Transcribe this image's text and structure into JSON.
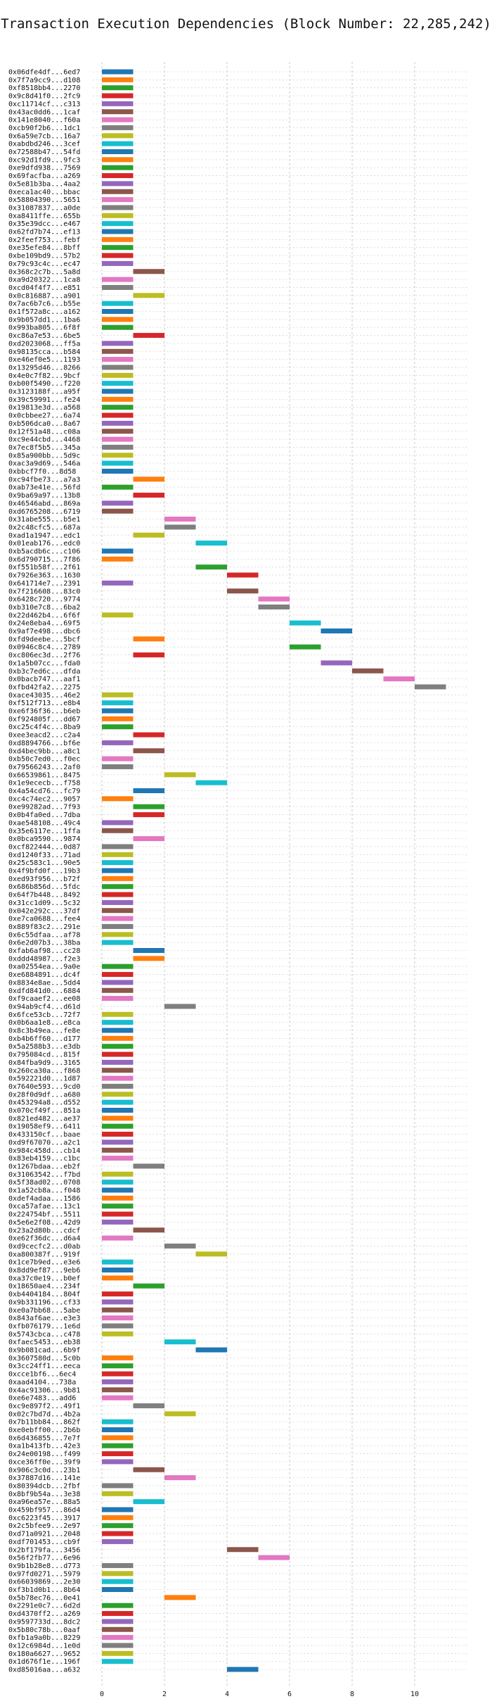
{
  "chart_data": {
    "type": "bar",
    "orientation": "horizontal",
    "title": "Transaction Execution Dependencies (Block Number: 22,285,242)",
    "xlabel": "",
    "ylabel": "",
    "xlim": [
      -0.5,
      11.7
    ],
    "xticks": [
      0,
      2,
      4,
      6,
      8,
      10
    ],
    "grid": true,
    "palette": [
      "#1f77b4",
      "#ff7f0e",
      "#2ca02c",
      "#d62728",
      "#9467bd",
      "#8c564b",
      "#e377c2",
      "#7f7f7f",
      "#bcbd22",
      "#17becf"
    ],
    "transactions": [
      {
        "hash": "0x06dfe4df...6ed7",
        "start": 0,
        "end": 1
      },
      {
        "hash": "0x7f7a9cc9...d108",
        "start": 0,
        "end": 1
      },
      {
        "hash": "0xf8518bb4...2270",
        "start": 0,
        "end": 1
      },
      {
        "hash": "0x9c8d41f0...2fc9",
        "start": 0,
        "end": 1
      },
      {
        "hash": "0xc11714cf...c313",
        "start": 0,
        "end": 1
      },
      {
        "hash": "0x43ac0dd6...1caf",
        "start": 0,
        "end": 1
      },
      {
        "hash": "0x141e8040...f60a",
        "start": 0,
        "end": 1
      },
      {
        "hash": "0xcb90f2b6...1dc1",
        "start": 0,
        "end": 1
      },
      {
        "hash": "0x6a59e7cb...16a7",
        "start": 0,
        "end": 1
      },
      {
        "hash": "0xabdbd246...3cef",
        "start": 0,
        "end": 1
      },
      {
        "hash": "0x72588b47...54fd",
        "start": 0,
        "end": 1
      },
      {
        "hash": "0xc92d1fd9...9fc3",
        "start": 0,
        "end": 1
      },
      {
        "hash": "0xe9dfd938...7569",
        "start": 0,
        "end": 1
      },
      {
        "hash": "0x69facfba...a269",
        "start": 0,
        "end": 1
      },
      {
        "hash": "0x5e81b3ba...4aa2",
        "start": 0,
        "end": 1
      },
      {
        "hash": "0xeca1ac40...bbac",
        "start": 0,
        "end": 1
      },
      {
        "hash": "0x58804390...5651",
        "start": 0,
        "end": 1
      },
      {
        "hash": "0x31087837...a0de",
        "start": 0,
        "end": 1
      },
      {
        "hash": "0xa8411ffe...655b",
        "start": 0,
        "end": 1
      },
      {
        "hash": "0x35e39dcc...e467",
        "start": 0,
        "end": 1
      },
      {
        "hash": "0x62fd7b74...ef13",
        "start": 0,
        "end": 1
      },
      {
        "hash": "0x2feef753...febf",
        "start": 0,
        "end": 1
      },
      {
        "hash": "0xe35efe84...8bff",
        "start": 0,
        "end": 1
      },
      {
        "hash": "0xbe109bd9...57b2",
        "start": 0,
        "end": 1
      },
      {
        "hash": "0x79c93c4c...ec47",
        "start": 0,
        "end": 1
      },
      {
        "hash": "0x368c2c7b...5a8d",
        "start": 1,
        "end": 2
      },
      {
        "hash": "0xa9d20322...1ca8",
        "start": 0,
        "end": 1
      },
      {
        "hash": "0xcd04f4f7...e851",
        "start": 0,
        "end": 1
      },
      {
        "hash": "0x0c816887...a901",
        "start": 1,
        "end": 2
      },
      {
        "hash": "0x7ac6b7c6...b55e",
        "start": 0,
        "end": 1
      },
      {
        "hash": "0x1f572a8c...a162",
        "start": 0,
        "end": 1
      },
      {
        "hash": "0x9b057dd1...1ba6",
        "start": 0,
        "end": 1
      },
      {
        "hash": "0x993ba805...6f8f",
        "start": 0,
        "end": 1
      },
      {
        "hash": "0xc86a7e53...6be5",
        "start": 1,
        "end": 2
      },
      {
        "hash": "0xd2023068...ff5a",
        "start": 0,
        "end": 1
      },
      {
        "hash": "0x98135cca...b584",
        "start": 0,
        "end": 1
      },
      {
        "hash": "0xe46ef0e5...1193",
        "start": 0,
        "end": 1
      },
      {
        "hash": "0x13295d46...8266",
        "start": 0,
        "end": 1
      },
      {
        "hash": "0x4e0c7f82...9bcf",
        "start": 0,
        "end": 1
      },
      {
        "hash": "0xb00f5490...f220",
        "start": 0,
        "end": 1
      },
      {
        "hash": "0x3123188f...a95f",
        "start": 0,
        "end": 1
      },
      {
        "hash": "0x39c59991...fe24",
        "start": 0,
        "end": 1
      },
      {
        "hash": "0x19813e3d...a568",
        "start": 0,
        "end": 1
      },
      {
        "hash": "0x0cbbee27...6a74",
        "start": 0,
        "end": 1
      },
      {
        "hash": "0xb506dca0...8a67",
        "start": 0,
        "end": 1
      },
      {
        "hash": "0x12f51a48...c08a",
        "start": 0,
        "end": 1
      },
      {
        "hash": "0xc9e44cbd...4468",
        "start": 0,
        "end": 1
      },
      {
        "hash": "0x7ec8f5b5...345a",
        "start": 0,
        "end": 1
      },
      {
        "hash": "0x85a900bb...5d9c",
        "start": 0,
        "end": 1
      },
      {
        "hash": "0xac3a9d69...546a",
        "start": 0,
        "end": 1
      },
      {
        "hash": "0xbbcf7f0...8d58",
        "start": 0,
        "end": 1
      },
      {
        "hash": "0xc94fbe73...a7a3",
        "start": 1,
        "end": 2
      },
      {
        "hash": "0xab73e41e...56fd",
        "start": 0,
        "end": 1
      },
      {
        "hash": "0x9ba69a97...13b8",
        "start": 1,
        "end": 2
      },
      {
        "hash": "0x46546abd...869a",
        "start": 0,
        "end": 1
      },
      {
        "hash": "0xd6765208...6719",
        "start": 0,
        "end": 1
      },
      {
        "hash": "0x31abe555...b5e1",
        "start": 2,
        "end": 3
      },
      {
        "hash": "0x2c48cfc5...687a",
        "start": 2,
        "end": 3
      },
      {
        "hash": "0xad1a1947...edc1",
        "start": 1,
        "end": 2
      },
      {
        "hash": "0x01eab176...edc0",
        "start": 3,
        "end": 4
      },
      {
        "hash": "0xb5acdb6c...c106",
        "start": 0,
        "end": 1
      },
      {
        "hash": "0x6d790715...7f86",
        "start": 0,
        "end": 1
      },
      {
        "hash": "0xf551b58f...2f61",
        "start": 3,
        "end": 4
      },
      {
        "hash": "0x7926e363...1630",
        "start": 4,
        "end": 5
      },
      {
        "hash": "0x641714e7...2391",
        "start": 0,
        "end": 1
      },
      {
        "hash": "0x7f216608...83c0",
        "start": 4,
        "end": 5
      },
      {
        "hash": "0x6428c720...9774",
        "start": 5,
        "end": 6
      },
      {
        "hash": "0xb310e7c8...6ba2",
        "start": 5,
        "end": 6
      },
      {
        "hash": "0x22d462b4...6f6f",
        "start": 0,
        "end": 1
      },
      {
        "hash": "0x24e8eba4...69f5",
        "start": 6,
        "end": 7
      },
      {
        "hash": "0x9af7e498...dbc6",
        "start": 7,
        "end": 8
      },
      {
        "hash": "0xfd9deebe...5bcf",
        "start": 1,
        "end": 2
      },
      {
        "hash": "0x0946c8c4...2789",
        "start": 6,
        "end": 7
      },
      {
        "hash": "0xc806ec3d...2f76",
        "start": 1,
        "end": 2
      },
      {
        "hash": "0x1a5b07cc...fda0",
        "start": 7,
        "end": 8
      },
      {
        "hash": "0xb3c7ed6c...dfda",
        "start": 8,
        "end": 9
      },
      {
        "hash": "0x0bacb747...aaf1",
        "start": 9,
        "end": 10
      },
      {
        "hash": "0xfbd42fa2...2275",
        "start": 10,
        "end": 11
      },
      {
        "hash": "0xace43035...46e2",
        "start": 0,
        "end": 1
      },
      {
        "hash": "0xf512f713...e8b4",
        "start": 0,
        "end": 1
      },
      {
        "hash": "0xe6f36f36...b6eb",
        "start": 0,
        "end": 1
      },
      {
        "hash": "0xf924805f...dd67",
        "start": 0,
        "end": 1
      },
      {
        "hash": "0xc25c4f4c...8ba9",
        "start": 0,
        "end": 1
      },
      {
        "hash": "0xee3eacd2...c2a4",
        "start": 1,
        "end": 2
      },
      {
        "hash": "0xd8894766...bf6e",
        "start": 0,
        "end": 1
      },
      {
        "hash": "0xd4bec9bb...a8c1",
        "start": 1,
        "end": 2
      },
      {
        "hash": "0xb50c7ed0...f0ec",
        "start": 0,
        "end": 1
      },
      {
        "hash": "0x79566243...2af0",
        "start": 0,
        "end": 1
      },
      {
        "hash": "0x66539861...8475",
        "start": 2,
        "end": 3
      },
      {
        "hash": "0x1e9ececb...f758",
        "start": 3,
        "end": 4
      },
      {
        "hash": "0x4a54cd76...fc79",
        "start": 1,
        "end": 2
      },
      {
        "hash": "0xc4c74ec2...9057",
        "start": 0,
        "end": 1
      },
      {
        "hash": "0xe99282ad...7f93",
        "start": 1,
        "end": 2
      },
      {
        "hash": "0x0b4fa0ed...7dba",
        "start": 1,
        "end": 2
      },
      {
        "hash": "0xae548108...49c4",
        "start": 0,
        "end": 1
      },
      {
        "hash": "0x35e6117e...1ffa",
        "start": 0,
        "end": 1
      },
      {
        "hash": "0x0bca9590...9874",
        "start": 1,
        "end": 2
      },
      {
        "hash": "0xcf822444...0d87",
        "start": 0,
        "end": 1
      },
      {
        "hash": "0xd1240f33...71ad",
        "start": 0,
        "end": 1
      },
      {
        "hash": "0x25c583c1...90e5",
        "start": 0,
        "end": 1
      },
      {
        "hash": "0x4f9bfd0f...19b3",
        "start": 0,
        "end": 1
      },
      {
        "hash": "0xed93f956...b72f",
        "start": 0,
        "end": 1
      },
      {
        "hash": "0x686b856d...5fdc",
        "start": 0,
        "end": 1
      },
      {
        "hash": "0x64f7b448...8492",
        "start": 0,
        "end": 1
      },
      {
        "hash": "0x31cc1d09...5c32",
        "start": 0,
        "end": 1
      },
      {
        "hash": "0x042e292c...37df",
        "start": 0,
        "end": 1
      },
      {
        "hash": "0xe7ca0688...fee4",
        "start": 0,
        "end": 1
      },
      {
        "hash": "0x889f83c2...291e",
        "start": 0,
        "end": 1
      },
      {
        "hash": "0x6c55dfaa...af78",
        "start": 0,
        "end": 1
      },
      {
        "hash": "0x6e2d07b3...38ba",
        "start": 0,
        "end": 1
      },
      {
        "hash": "0xfab6af98...cc28",
        "start": 1,
        "end": 2
      },
      {
        "hash": "0xddd48987...f2e3",
        "start": 1,
        "end": 2
      },
      {
        "hash": "0xa02554ea...9a0e",
        "start": 0,
        "end": 1
      },
      {
        "hash": "0xe6884891...dc4f",
        "start": 0,
        "end": 1
      },
      {
        "hash": "0x8834e8ae...5dd4",
        "start": 0,
        "end": 1
      },
      {
        "hash": "0xdfd841d0...6884",
        "start": 0,
        "end": 1
      },
      {
        "hash": "0xf9caaef2...ee08",
        "start": 0,
        "end": 1
      },
      {
        "hash": "0x94ab9cf4...d61d",
        "start": 2,
        "end": 3
      },
      {
        "hash": "0x6fce53cb...72f7",
        "start": 0,
        "end": 1
      },
      {
        "hash": "0x0b6aa1e8...e8ca",
        "start": 0,
        "end": 1
      },
      {
        "hash": "0x8c3b49ea...fe8e",
        "start": 0,
        "end": 1
      },
      {
        "hash": "0xb4b6ff60...d177",
        "start": 0,
        "end": 1
      },
      {
        "hash": "0x5a2588b3...e3db",
        "start": 0,
        "end": 1
      },
      {
        "hash": "0x795084cd...815f",
        "start": 0,
        "end": 1
      },
      {
        "hash": "0x84fba9d9...3165",
        "start": 0,
        "end": 1
      },
      {
        "hash": "0x260ca30a...f868",
        "start": 0,
        "end": 1
      },
      {
        "hash": "0x592221d0...1d87",
        "start": 0,
        "end": 1
      },
      {
        "hash": "0x7640e593...9cd0",
        "start": 0,
        "end": 1
      },
      {
        "hash": "0x28f0d9df...a680",
        "start": 0,
        "end": 1
      },
      {
        "hash": "0x453294a8...d552",
        "start": 0,
        "end": 1
      },
      {
        "hash": "0x070cf49f...851a",
        "start": 0,
        "end": 1
      },
      {
        "hash": "0x821ed482...ae37",
        "start": 0,
        "end": 1
      },
      {
        "hash": "0x19058ef9...6411",
        "start": 0,
        "end": 1
      },
      {
        "hash": "0x433150cf...baae",
        "start": 0,
        "end": 1
      },
      {
        "hash": "0xd9f67070...a2c1",
        "start": 0,
        "end": 1
      },
      {
        "hash": "0x984c458d...cb14",
        "start": 0,
        "end": 1
      },
      {
        "hash": "0x83eb4159...c1bc",
        "start": 0,
        "end": 1
      },
      {
        "hash": "0x1267bdaa...eb2f",
        "start": 1,
        "end": 2
      },
      {
        "hash": "0x31063542...f7bd",
        "start": 0,
        "end": 1
      },
      {
        "hash": "0x5f38ad02...0708",
        "start": 0,
        "end": 1
      },
      {
        "hash": "0x1a52cb8a...f048",
        "start": 0,
        "end": 1
      },
      {
        "hash": "0xdef4adaa...1586",
        "start": 0,
        "end": 1
      },
      {
        "hash": "0xca57afae...13c1",
        "start": 0,
        "end": 1
      },
      {
        "hash": "0x224754bf...5511",
        "start": 0,
        "end": 1
      },
      {
        "hash": "0x5e6e2f08...42d9",
        "start": 0,
        "end": 1
      },
      {
        "hash": "0x23a2d80b...cdcf",
        "start": 1,
        "end": 2
      },
      {
        "hash": "0xe62f36dc...d6a4",
        "start": 0,
        "end": 1
      },
      {
        "hash": "0xd9cecfc2...d0ab",
        "start": 2,
        "end": 3
      },
      {
        "hash": "0xa800387f...919f",
        "start": 3,
        "end": 4
      },
      {
        "hash": "0x1ce7b9ed...e3e6",
        "start": 0,
        "end": 1
      },
      {
        "hash": "0x8dd9ef87...9eb6",
        "start": 0,
        "end": 1
      },
      {
        "hash": "0xa37c0e19...b0ef",
        "start": 0,
        "end": 1
      },
      {
        "hash": "0x18650ae4...234f",
        "start": 1,
        "end": 2
      },
      {
        "hash": "0xb4404184...804f",
        "start": 0,
        "end": 1
      },
      {
        "hash": "0x9b331196...cf33",
        "start": 0,
        "end": 1
      },
      {
        "hash": "0xe0a7bb68...5abe",
        "start": 0,
        "end": 1
      },
      {
        "hash": "0x843af6ae...e3e3",
        "start": 0,
        "end": 1
      },
      {
        "hash": "0xfb076179...1e6d",
        "start": 0,
        "end": 1
      },
      {
        "hash": "0x5743cbca...c478",
        "start": 0,
        "end": 1
      },
      {
        "hash": "0xfaec5453...eb38",
        "start": 2,
        "end": 3
      },
      {
        "hash": "0x9b081cad...6b9f",
        "start": 3,
        "end": 4
      },
      {
        "hash": "0x3607580d...5c0b",
        "start": 0,
        "end": 1
      },
      {
        "hash": "0x3cc24ff1...eeca",
        "start": 0,
        "end": 1
      },
      {
        "hash": "0xcce1bf6...6ec4",
        "start": 0,
        "end": 1
      },
      {
        "hash": "0xaad4104...738a",
        "start": 0,
        "end": 1
      },
      {
        "hash": "0x4ac91306...9b81",
        "start": 0,
        "end": 1
      },
      {
        "hash": "0xe6e7483...add6",
        "start": 0,
        "end": 1
      },
      {
        "hash": "0xc9e897f2...49f1",
        "start": 1,
        "end": 2
      },
      {
        "hash": "0x02c7bd7d...4b2a",
        "start": 2,
        "end": 3
      },
      {
        "hash": "0x7b11bb84...862f",
        "start": 0,
        "end": 1
      },
      {
        "hash": "0xe0ebff00...2b6b",
        "start": 0,
        "end": 1
      },
      {
        "hash": "0x6d436855...7e7f",
        "start": 0,
        "end": 1
      },
      {
        "hash": "0xa1b413fb...42e3",
        "start": 0,
        "end": 1
      },
      {
        "hash": "0x24e00198...f499",
        "start": 0,
        "end": 1
      },
      {
        "hash": "0xce36ff0e...39f9",
        "start": 0,
        "end": 1
      },
      {
        "hash": "0x906c3c0d...23b1",
        "start": 1,
        "end": 2
      },
      {
        "hash": "0x37887d16...141e",
        "start": 2,
        "end": 3
      },
      {
        "hash": "0x80394dcb...2fbf",
        "start": 0,
        "end": 1
      },
      {
        "hash": "0x8bf9b54a...3e38",
        "start": 0,
        "end": 1
      },
      {
        "hash": "0xa96ea57e...88a5",
        "start": 1,
        "end": 2
      },
      {
        "hash": "0x459bf957...86d4",
        "start": 0,
        "end": 1
      },
      {
        "hash": "0xc6223f45...3917",
        "start": 0,
        "end": 1
      },
      {
        "hash": "0x2c5bfee9...2e97",
        "start": 0,
        "end": 1
      },
      {
        "hash": "0xd71a0921...2048",
        "start": 0,
        "end": 1
      },
      {
        "hash": "0xdf701453...cb9f",
        "start": 0,
        "end": 1
      },
      {
        "hash": "0x2bf179fa...3456",
        "start": 4,
        "end": 5
      },
      {
        "hash": "0x56f2fb77...6e96",
        "start": 5,
        "end": 6
      },
      {
        "hash": "0x9b1b28e8...d773",
        "start": 0,
        "end": 1
      },
      {
        "hash": "0x97fd0271...5979",
        "start": 0,
        "end": 1
      },
      {
        "hash": "0x66039869...2e30",
        "start": 0,
        "end": 1
      },
      {
        "hash": "0xf3b1d0b1...8b64",
        "start": 0,
        "end": 1
      },
      {
        "hash": "0x5b78ec76...0e41",
        "start": 2,
        "end": 3
      },
      {
        "hash": "0x2291e0c7...6d2d",
        "start": 0,
        "end": 1
      },
      {
        "hash": "0xd4370ff2...a269",
        "start": 0,
        "end": 1
      },
      {
        "hash": "0x9597733d...8dc2",
        "start": 0,
        "end": 1
      },
      {
        "hash": "0x5b80c78b...0aaf",
        "start": 0,
        "end": 1
      },
      {
        "hash": "0xfb1a9a0b...8229",
        "start": 0,
        "end": 1
      },
      {
        "hash": "0x12c6984d...1e0d",
        "start": 0,
        "end": 1
      },
      {
        "hash": "0x180a6627...9652",
        "start": 0,
        "end": 1
      },
      {
        "hash": "0x1d676f1e...196f",
        "start": 0,
        "end": 1
      },
      {
        "hash": "0xd85016aa...a632",
        "start": 4,
        "end": 5
      }
    ]
  }
}
